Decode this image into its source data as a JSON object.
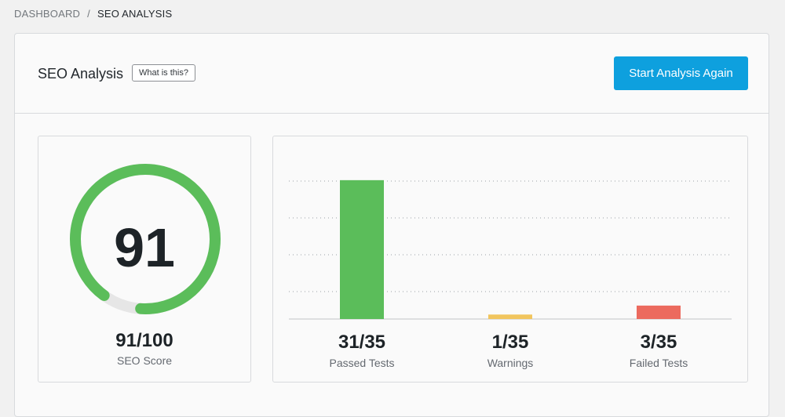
{
  "breadcrumb": {
    "root": "DASHBOARD",
    "separator": "/",
    "current": "SEO ANALYSIS"
  },
  "header": {
    "title": "SEO Analysis",
    "help_label": "What is this?",
    "action_label": "Start Analysis Again"
  },
  "score": {
    "value": "91",
    "fraction": "91/100",
    "label": "SEO Score",
    "percent": 91,
    "color": "#5bbd5a",
    "track_color": "#e6e6e6"
  },
  "chart_data": {
    "type": "bar",
    "categories": [
      "Passed Tests",
      "Warnings",
      "Failed Tests"
    ],
    "values": [
      31,
      1,
      3
    ],
    "total": 35,
    "colors": [
      "#5bbd5a",
      "#f1c55e",
      "#ec6a5e"
    ],
    "ylim": [
      0,
      35
    ],
    "grid": true
  },
  "stats": [
    {
      "value": "31/35",
      "label": "Passed Tests"
    },
    {
      "value": "1/35",
      "label": "Warnings"
    },
    {
      "value": "3/35",
      "label": "Failed Tests"
    }
  ]
}
